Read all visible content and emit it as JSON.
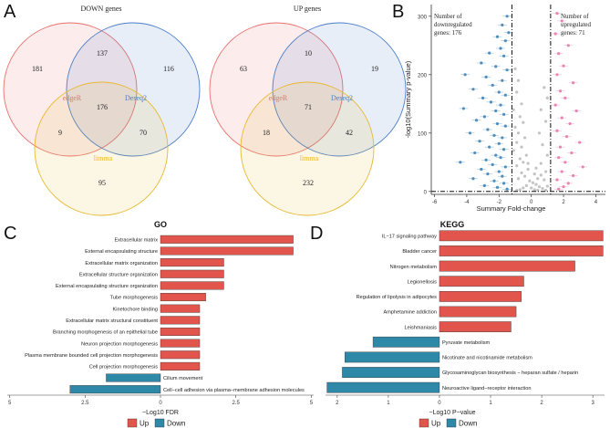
{
  "panel_letters": {
    "a": "A",
    "b": "B",
    "c": "C",
    "d": "D"
  },
  "colors": {
    "edger": "#E8706D",
    "deseq2": "#4A7DC9",
    "limma": "#E8B830",
    "up": "#E1554C",
    "down": "#2E88A8",
    "volcano_down": "#3E84B8",
    "volcano_up": "#E77AAA",
    "volcano_ns": "#BDBDBD"
  },
  "chart_data": [
    {
      "type": "venn",
      "title": "DOWN genes",
      "sets": [
        "edgeR",
        "Deseq2",
        "limma"
      ],
      "regions": {
        "edgeR_only": 181,
        "deseq2_only": 116,
        "limma_only": 95,
        "edgeR_deseq2": 137,
        "edgeR_limma": 9,
        "deseq2_limma": 70,
        "all": 176
      }
    },
    {
      "type": "venn",
      "title": "UP genes",
      "sets": [
        "edgeR",
        "Deseq2",
        "limma"
      ],
      "regions": {
        "edgeR_only": 63,
        "deseq2_only": 19,
        "limma_only": 232,
        "edgeR_deseq2": 10,
        "edgeR_limma": 18,
        "deseq2_limma": 42,
        "all": 71
      }
    },
    {
      "type": "scatter",
      "title": "Volcano plot",
      "xlabel": "Summary Fold-change",
      "ylabel": "-log10(Summary p-value)",
      "xlim": [
        -6.2,
        4.6
      ],
      "ylim": [
        -5,
        320
      ],
      "xticks": [
        -6,
        -4,
        -2,
        0,
        2,
        4
      ],
      "yticks": [
        0,
        100,
        200,
        300
      ],
      "thresholds": {
        "x": [
          -1.2,
          1.2
        ],
        "y": 0
      },
      "annotations": {
        "down": [
          "Number of",
          "downregulated",
          "genes:  176"
        ],
        "up": [
          "Number of",
          "upregulated",
          "genes:  71"
        ]
      },
      "series": [
        {
          "name": "Down",
          "points": [
            [
              -1.5,
              300
            ],
            [
              -1.8,
              285
            ],
            [
              -1.4,
              272
            ],
            [
              -2.1,
              265
            ],
            [
              -1.6,
              258
            ],
            [
              -1.9,
              245
            ],
            [
              -2.6,
              237
            ],
            [
              -1.7,
              232
            ],
            [
              -3.1,
              220
            ],
            [
              -2.2,
              214
            ],
            [
              -1.5,
              208
            ],
            [
              -4.1,
              200
            ],
            [
              -2.8,
              196
            ],
            [
              -1.8,
              190
            ],
            [
              -2.4,
              182
            ],
            [
              -3.6,
              175
            ],
            [
              -2.0,
              170
            ],
            [
              -1.6,
              165
            ],
            [
              -3.0,
              160
            ],
            [
              -2.5,
              153
            ],
            [
              -1.9,
              148
            ],
            [
              -4.2,
              142
            ],
            [
              -2.2,
              138
            ],
            [
              -1.7,
              132
            ],
            [
              -2.9,
              128
            ],
            [
              -3.4,
              122
            ],
            [
              -2.1,
              116
            ],
            [
              -1.6,
              112
            ],
            [
              -2.7,
              106
            ],
            [
              -3.8,
              100
            ],
            [
              -2.3,
              96
            ],
            [
              -1.8,
              92
            ],
            [
              -3.2,
              86
            ],
            [
              -2.0,
              82
            ],
            [
              -2.6,
              76
            ],
            [
              -1.7,
              72
            ],
            [
              -3.5,
              66
            ],
            [
              -2.2,
              62
            ],
            [
              -1.9,
              58
            ],
            [
              -2.8,
              54
            ],
            [
              -4.4,
              50
            ],
            [
              -2.4,
              46
            ],
            [
              -1.6,
              42
            ],
            [
              -3.1,
              38
            ],
            [
              -2.0,
              34
            ],
            [
              -2.7,
              30
            ],
            [
              -1.8,
              26
            ],
            [
              -3.6,
              22
            ],
            [
              -2.3,
              18
            ],
            [
              -1.7,
              14
            ],
            [
              -2.9,
              10
            ],
            [
              -2.1,
              7
            ],
            [
              -1.5,
              4
            ]
          ]
        },
        {
          "name": "Up",
          "points": [
            [
              1.6,
              305
            ],
            [
              1.9,
              292
            ],
            [
              1.5,
              270
            ],
            [
              2.3,
              250
            ],
            [
              1.7,
              236
            ],
            [
              2.0,
              215
            ],
            [
              1.6,
              200
            ],
            [
              2.6,
              186
            ],
            [
              1.8,
              172
            ],
            [
              2.1,
              160
            ],
            [
              1.5,
              148
            ],
            [
              2.8,
              138
            ],
            [
              1.9,
              126
            ],
            [
              2.4,
              116
            ],
            [
              1.6,
              104
            ],
            [
              2.2,
              94
            ],
            [
              3.0,
              84
            ],
            [
              1.8,
              76
            ],
            [
              2.5,
              66
            ],
            [
              1.7,
              58
            ],
            [
              2.1,
              50
            ],
            [
              3.2,
              42
            ],
            [
              1.9,
              34
            ],
            [
              2.6,
              27
            ],
            [
              1.6,
              20
            ],
            [
              2.3,
              14
            ],
            [
              2.0,
              8
            ],
            [
              1.7,
              4
            ]
          ]
        },
        {
          "name": "NS",
          "points": [
            [
              -1.0,
              210
            ],
            [
              -0.8,
              190
            ],
            [
              -0.9,
              170
            ],
            [
              -0.6,
              150
            ],
            [
              -1.1,
              140
            ],
            [
              -0.7,
              128
            ],
            [
              -0.5,
              118
            ],
            [
              -1.0,
              110
            ],
            [
              -0.8,
              100
            ],
            [
              -0.4,
              92
            ],
            [
              -0.9,
              84
            ],
            [
              -0.6,
              76
            ],
            [
              -1.1,
              70
            ],
            [
              -0.3,
              62
            ],
            [
              -0.7,
              56
            ],
            [
              -0.5,
              50
            ],
            [
              -0.9,
              44
            ],
            [
              -0.2,
              38
            ],
            [
              -0.6,
              32
            ],
            [
              -0.4,
              26
            ],
            [
              -0.8,
              22
            ],
            [
              -0.1,
              18
            ],
            [
              0.1,
              15
            ],
            [
              0.3,
              12
            ],
            [
              -0.3,
              10
            ],
            [
              0.5,
              8
            ],
            [
              -0.5,
              6
            ],
            [
              0.7,
              5
            ],
            [
              0.2,
              3
            ],
            [
              -0.7,
              3
            ],
            [
              0.9,
              2
            ],
            [
              0.4,
              2
            ],
            [
              -0.9,
              2
            ],
            [
              1.0,
              9
            ],
            [
              0.8,
              20
            ],
            [
              0.9,
              34
            ],
            [
              0.6,
              48
            ],
            [
              1.0,
              62
            ],
            [
              0.7,
              80
            ],
            [
              0.5,
              100
            ],
            [
              0.9,
              120
            ],
            [
              0.6,
              140
            ],
            [
              1.0,
              160
            ],
            [
              0.8,
              178
            ],
            [
              0.4,
              22
            ],
            [
              0.3,
              40
            ],
            [
              0.2,
              30
            ],
            [
              -0.2,
              48
            ],
            [
              0.6,
              28
            ],
            [
              0.0,
              6
            ]
          ]
        }
      ]
    },
    {
      "type": "bar",
      "title": "GO",
      "xlabel": "−Log10 FDR",
      "xticks": [
        "5",
        "2.5",
        "0",
        "2.5",
        "5"
      ],
      "xlim": [
        -5.2,
        5.2
      ],
      "legend": [
        "Up",
        "Down"
      ],
      "categories": [
        "Extracellular matrix",
        "External encapsulating structure",
        "Extracellular matrix organization",
        "Extracellular structure organization",
        "External encapsulating structure organization",
        "Tube morphogenesis",
        "Kinetochore binding",
        "Extracellular matrix structural constituent",
        "Branching morphogenesis of an epithelial tube",
        "Neuron projection morphogenesis",
        "Plasma membrane bounded cell projection morphogenesis",
        "Cell projection morphogenesis",
        "Cilium movement",
        "Cell−cell adhesion via plasma−membrane adhesion molecules"
      ],
      "values": [
        4.4,
        4.4,
        2.1,
        2.1,
        2.1,
        1.5,
        1.3,
        1.3,
        1.3,
        1.3,
        1.3,
        1.3,
        -1.8,
        -3.0
      ],
      "directions": [
        "Up",
        "Up",
        "Up",
        "Up",
        "Up",
        "Up",
        "Up",
        "Up",
        "Up",
        "Up",
        "Up",
        "Up",
        "Down",
        "Down"
      ]
    },
    {
      "type": "bar",
      "title": "KEGG",
      "xlabel": "−Log10 P−value",
      "xticks": [
        "2",
        "1",
        "0",
        "1",
        "2",
        "3"
      ],
      "xlim": [
        -2.3,
        3.3
      ],
      "legend": [
        "Up",
        "Down"
      ],
      "categories": [
        "IL−17 signaling pathway",
        "Bladder cancer",
        "Nitrogen metabolism",
        "Legionellosis",
        "Regulation of lipolysis in adipocytes",
        "Amphetamine addiction",
        "Leishmaniasis",
        "Pyruvate metabolism",
        "Nicotinate and nicotinamide metabolism",
        "Glycosaminoglycan biosynthesis − heparan sulfate / heparin",
        "Neuroactive ligand−receptor interaction"
      ],
      "values": [
        3.2,
        3.2,
        2.65,
        1.65,
        1.6,
        1.5,
        1.4,
        -1.3,
        -1.85,
        -1.9,
        -2.2
      ],
      "directions": [
        "Up",
        "Up",
        "Up",
        "Up",
        "Up",
        "Up",
        "Up",
        "Down",
        "Down",
        "Down",
        "Down"
      ]
    }
  ]
}
